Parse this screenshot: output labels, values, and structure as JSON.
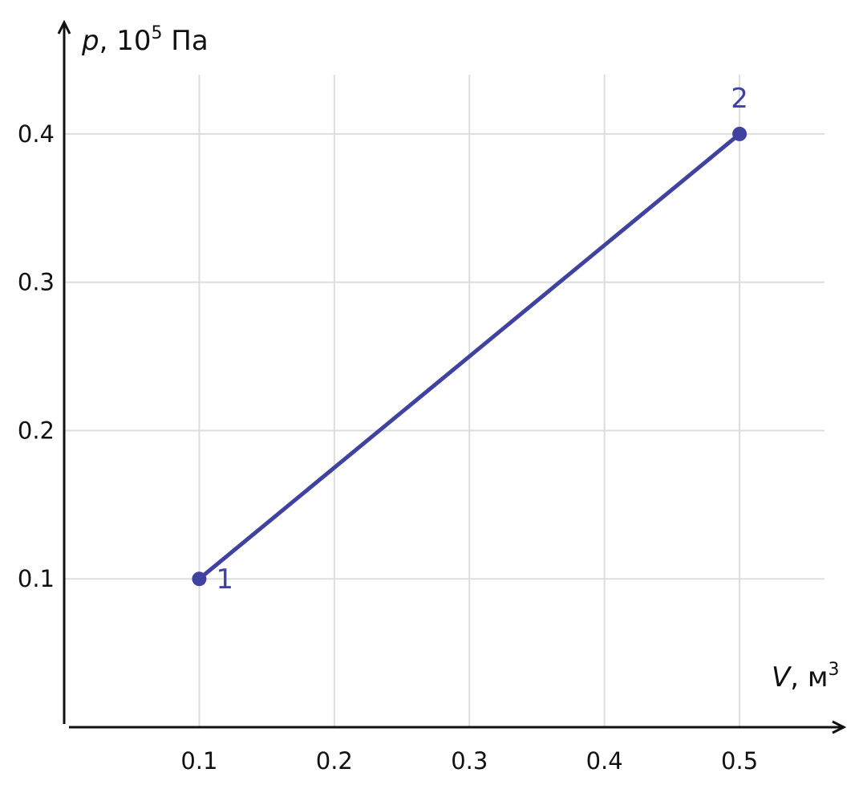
{
  "chart_data": {
    "type": "line",
    "title": "",
    "xlabel": {
      "var": "V",
      "unit": ", м",
      "unit_exp": "3"
    },
    "ylabel": {
      "var": "p",
      "unit_pre": ", 10",
      "unit_exp": "5",
      "unit_post": " Па"
    },
    "xlim": [
      0,
      0.57
    ],
    "ylim": [
      0,
      0.44
    ],
    "x_ticks": [
      0.1,
      0.2,
      0.3,
      0.4,
      0.5
    ],
    "y_ticks": [
      0.1,
      0.2,
      0.3,
      0.4
    ],
    "x_tick_labels": [
      "0.1",
      "0.2",
      "0.3",
      "0.4",
      "0.5"
    ],
    "y_tick_labels": [
      "0.1",
      "0.2",
      "0.3",
      "0.4"
    ],
    "grid": true,
    "series": [
      {
        "color": "#4042a0",
        "points": [
          {
            "x": 0.1,
            "y": 0.1,
            "label": "1"
          },
          {
            "x": 0.5,
            "y": 0.4,
            "label": "2"
          }
        ]
      }
    ]
  }
}
